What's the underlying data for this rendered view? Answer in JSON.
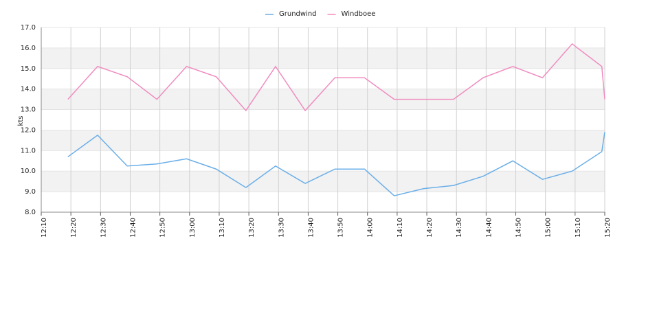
{
  "chart_data": {
    "type": "line",
    "x": [
      "12:19",
      "12:29",
      "12:39",
      "12:49",
      "12:59",
      "13:09",
      "13:19",
      "13:29",
      "13:39",
      "13:49",
      "13:59",
      "14:09",
      "14:19",
      "14:29",
      "14:39",
      "14:49",
      "14:59",
      "15:09",
      "15:19",
      "15:20"
    ],
    "series": [
      {
        "name": "Grundwind",
        "color": "#6aaee8",
        "values": [
          10.7,
          11.75,
          10.25,
          10.35,
          10.6,
          10.1,
          9.2,
          10.25,
          9.4,
          10.1,
          10.1,
          8.8,
          9.15,
          9.3,
          9.75,
          10.5,
          9.6,
          10.0,
          10.95,
          11.9
        ]
      },
      {
        "name": "Windboee",
        "color": "#f08cc0",
        "values": [
          13.5,
          15.1,
          14.6,
          13.5,
          15.1,
          14.6,
          12.95,
          15.1,
          12.95,
          14.55,
          14.55,
          13.5,
          13.5,
          13.5,
          14.55,
          15.1,
          14.55,
          16.2,
          15.1,
          13.5
        ]
      }
    ],
    "ylabel": "kts",
    "xlim": [
      "12:10",
      "15:20"
    ],
    "xticks": [
      "12:10",
      "12:20",
      "12:30",
      "12:40",
      "12:50",
      "13:00",
      "13:10",
      "13:20",
      "13:30",
      "13:40",
      "13:50",
      "14:00",
      "14:10",
      "14:20",
      "14:30",
      "14:40",
      "14:50",
      "15:00",
      "15:10",
      "15:20"
    ],
    "ylim": [
      8,
      17
    ],
    "yticks": [
      {
        "value": 8,
        "label": "8.0"
      },
      {
        "value": 9,
        "label": "9.0"
      },
      {
        "value": 10,
        "label": "10.0"
      },
      {
        "value": 11,
        "label": "11.0"
      },
      {
        "value": 12,
        "label": "12.0"
      },
      {
        "value": 13,
        "label": "13.0"
      },
      {
        "value": 14,
        "label": "14.0"
      },
      {
        "value": 15,
        "label": "15.0"
      },
      {
        "value": 16,
        "label": "16.0"
      },
      {
        "value": 17,
        "label": "17.0"
      }
    ],
    "grid": true,
    "legend": "top"
  }
}
